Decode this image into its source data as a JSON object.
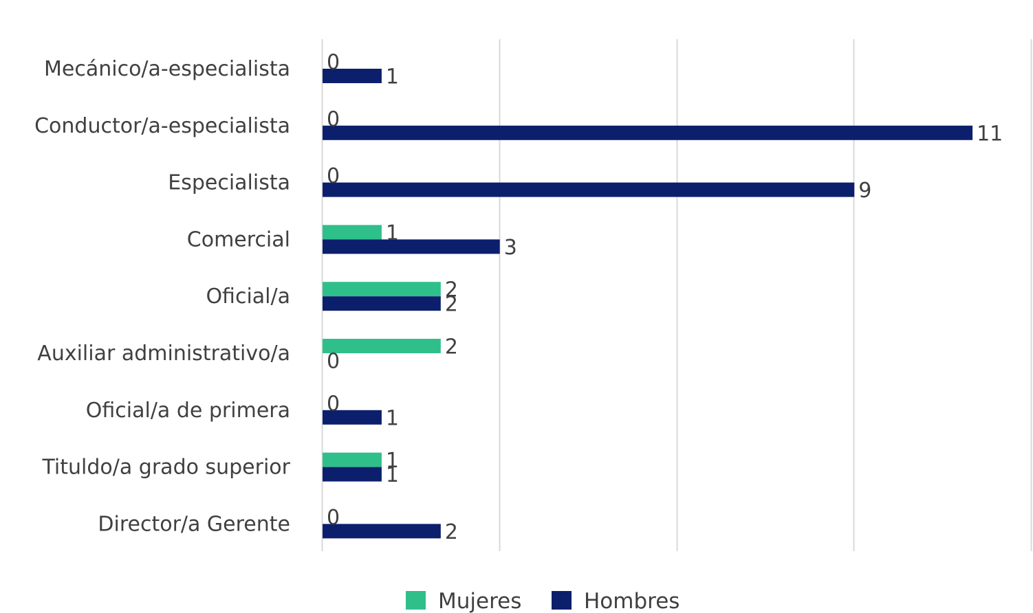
{
  "chart_data": {
    "type": "bar",
    "orientation": "horizontal",
    "categories": [
      "Mecánico/a-especialista",
      "Conductor/a-especialista",
      "Especialista",
      "Comercial",
      "Oficial/a",
      "Auxiliar administrativo/a",
      "Oficial/a de primera",
      "Tituldo/a grado superior",
      "Director/a Gerente"
    ],
    "series": [
      {
        "name": "Mujeres",
        "color": "#2fbf8b",
        "values": [
          0,
          0,
          0,
          1,
          2,
          2,
          0,
          1,
          0
        ]
      },
      {
        "name": "Hombres",
        "color": "#0c1f6d",
        "values": [
          1,
          11,
          9,
          3,
          2,
          0,
          1,
          1,
          2
        ]
      }
    ],
    "xlim": [
      0,
      12
    ],
    "title": "",
    "xlabel": "",
    "ylabel": "",
    "grid": "vertical",
    "legend_position": "bottom"
  }
}
